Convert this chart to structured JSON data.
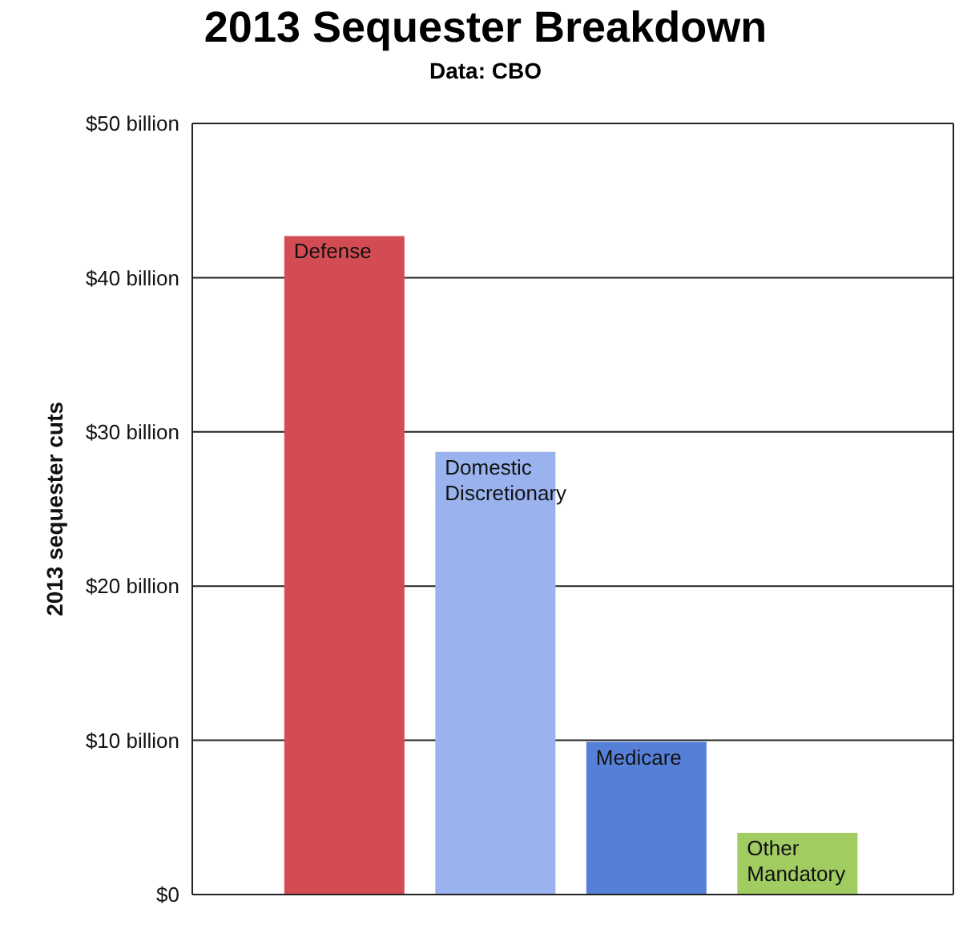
{
  "chart_data": {
    "type": "bar",
    "title": "2013 Sequester Breakdown",
    "subtitle": "Data: CBO",
    "ylabel": "2013 sequester cuts",
    "categories": [
      "Defense",
      "Domestic Discretionary",
      "Medicare",
      "Other Mandatory"
    ],
    "values": [
      42.7,
      28.7,
      9.9,
      4.0
    ],
    "colors": [
      "#d44c53",
      "#9ab3ee",
      "#5680d8",
      "#a0cc62"
    ],
    "ylim": [
      0,
      50
    ],
    "yticks": [
      {
        "value": 0,
        "label": "$0"
      },
      {
        "value": 10,
        "label": "$10 billion"
      },
      {
        "value": 20,
        "label": "$20 billion"
      },
      {
        "value": 30,
        "label": "$30 billion"
      },
      {
        "value": 40,
        "label": "$40 billion"
      },
      {
        "value": 50,
        "label": "$50 billion"
      }
    ],
    "grid": "y"
  }
}
